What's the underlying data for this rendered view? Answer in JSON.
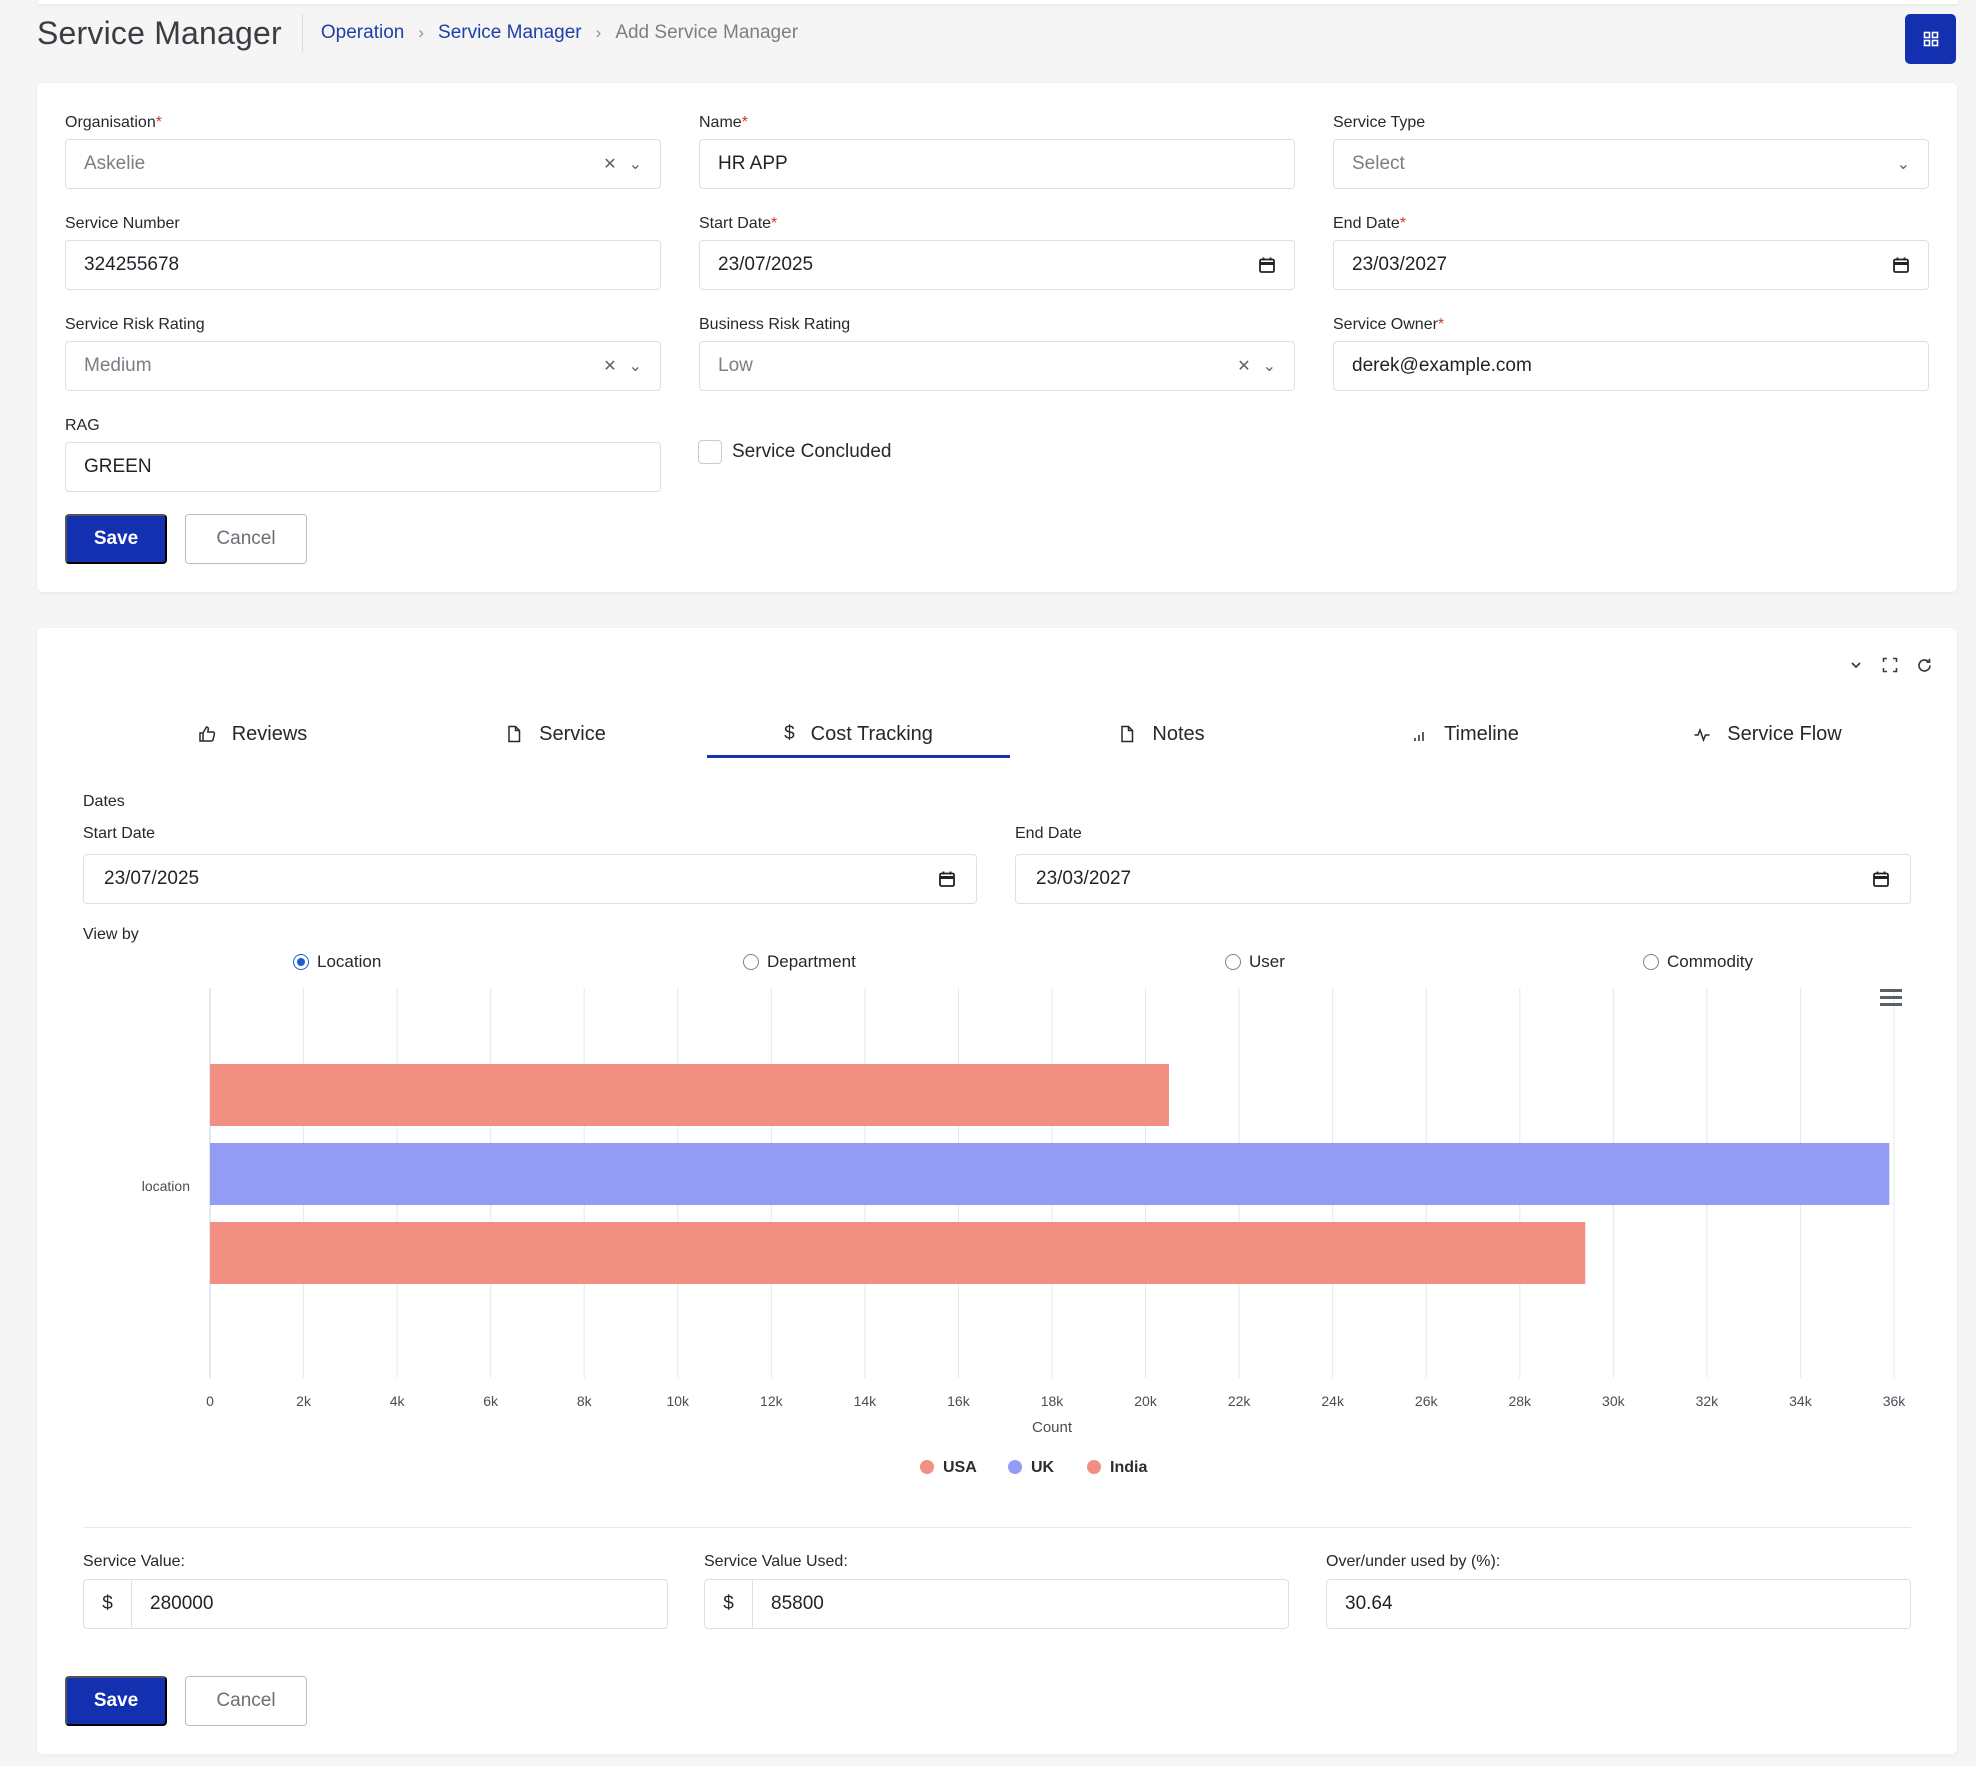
{
  "header": {
    "title": "Service Manager",
    "breadcrumb": [
      "Operation",
      "Service Manager",
      "Add Service Manager"
    ]
  },
  "form": {
    "organisation": {
      "label": "Organisation",
      "value": "Askelie"
    },
    "name": {
      "label": "Name",
      "value": "HR APP"
    },
    "service_type": {
      "label": "Service Type",
      "placeholder": "Select"
    },
    "service_number": {
      "label": "Service Number",
      "value": "324255678"
    },
    "start_date": {
      "label": "Start Date",
      "value": "23/07/2025"
    },
    "end_date": {
      "label": "End Date",
      "value": "23/03/2027"
    },
    "service_risk": {
      "label": "Service Risk Rating",
      "value": "Medium"
    },
    "business_risk": {
      "label": "Business Risk Rating",
      "value": "Low"
    },
    "service_owner": {
      "label": "Service Owner",
      "value": "derek@example.com"
    },
    "rag": {
      "label": "RAG",
      "value": "GREEN"
    },
    "concluded": {
      "label": "Service Concluded",
      "checked": false
    },
    "save_label": "Save",
    "cancel_label": "Cancel"
  },
  "tabs": [
    {
      "label": "Reviews",
      "icon": "thumbs-up-icon"
    },
    {
      "label": "Service",
      "icon": "document-icon"
    },
    {
      "label": "Cost Tracking",
      "icon": "dollar-icon",
      "active": true
    },
    {
      "label": "Notes",
      "icon": "document-icon"
    },
    {
      "label": "Timeline",
      "icon": "bar-signal-icon"
    },
    {
      "label": "Service Flow",
      "icon": "activity-icon"
    }
  ],
  "cost": {
    "dates_label": "Dates",
    "start_label": "Start Date",
    "start_value": "23/07/2025",
    "end_label": "End Date",
    "end_value": "23/03/2027",
    "view_by_label": "View by",
    "view_by_options": [
      "Location",
      "Department",
      "User",
      "Commodity"
    ],
    "view_by_selected": "Location",
    "service_value_label": "Service Value:",
    "service_value": "280000",
    "service_value_used_label": "Service Value Used:",
    "service_value_used": "85800",
    "over_under_label": "Over/under used by (%):",
    "over_under_value": "30.64",
    "currency_symbol": "$",
    "save_label": "Save",
    "cancel_label": "Cancel"
  },
  "chart_data": {
    "type": "bar",
    "orientation": "horizontal",
    "categories": [
      "location"
    ],
    "series": [
      {
        "name": "USA",
        "values": [
          20500
        ],
        "color": "#f08f82"
      },
      {
        "name": "UK",
        "values": [
          35900
        ],
        "color": "#929cf4"
      },
      {
        "name": "India",
        "values": [
          29400
        ],
        "color": "#f08f82"
      }
    ],
    "xlabel": "Count",
    "ylabel": "",
    "xlim": [
      0,
      36000
    ],
    "xticks": [
      "0",
      "2k",
      "4k",
      "6k",
      "8k",
      "10k",
      "12k",
      "14k",
      "16k",
      "18k",
      "20k",
      "22k",
      "24k",
      "26k",
      "28k",
      "30k",
      "32k",
      "34k",
      "36k"
    ],
    "grid": true,
    "legend": "bottom-center"
  },
  "colors": {
    "primary": "#1330b0",
    "link": "#1f3fa8",
    "required": "#d0342c"
  }
}
